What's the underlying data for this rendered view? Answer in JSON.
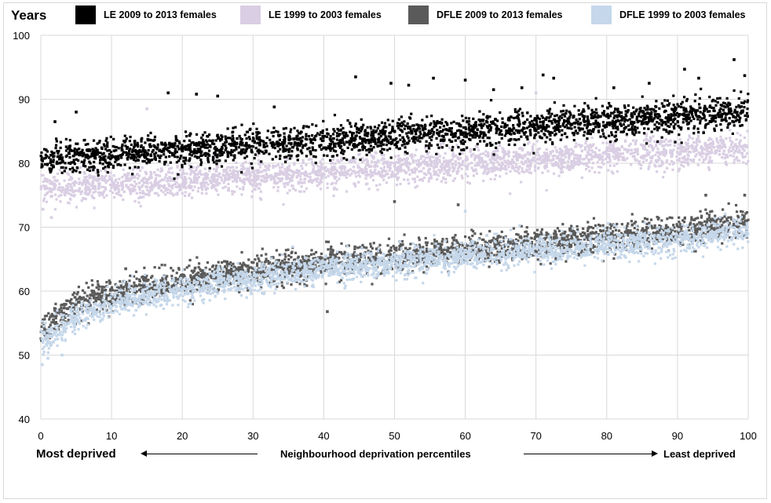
{
  "chart_data": {
    "type": "scatter",
    "title": "",
    "ylabel": "Years",
    "xlabel": "Neighbourhood deprivation percentiles",
    "xlim": [
      0,
      100
    ],
    "ylim": [
      40,
      100
    ],
    "x_ticks": [
      0,
      10,
      20,
      30,
      40,
      50,
      60,
      70,
      80,
      90,
      100
    ],
    "y_ticks": [
      40,
      50,
      60,
      70,
      80,
      90,
      100
    ],
    "grid": true,
    "legend_position": "top",
    "annotations": {
      "left": "Most deprived",
      "center": "Neighbourhood deprivation percentiles",
      "right": "Least deprived"
    },
    "series": [
      {
        "name": "LE 2009 to 2013 females",
        "color": "#000000",
        "trend": {
          "x": [
            0,
            100
          ],
          "y": [
            80.5,
            88.0
          ]
        },
        "spread": 2.3,
        "outliers": [
          [
            2,
            86.5
          ],
          [
            5,
            88.0
          ],
          [
            18,
            91.0
          ],
          [
            22,
            90.8
          ],
          [
            25,
            90.5
          ],
          [
            33,
            88.8
          ],
          [
            44.5,
            93.5
          ],
          [
            49.5,
            92.5
          ],
          [
            52,
            92.2
          ],
          [
            55.5,
            93.3
          ],
          [
            60,
            93.0
          ],
          [
            64,
            91.5
          ],
          [
            68,
            91.8
          ],
          [
            71,
            93.8
          ],
          [
            72.5,
            93.3
          ],
          [
            81,
            91.8
          ],
          [
            86,
            92.5
          ],
          [
            91,
            94.7
          ],
          [
            93,
            93.3
          ],
          [
            98,
            96.2
          ],
          [
            99.5,
            93.7
          ]
        ]
      },
      {
        "name": "LE 1999 to 2003 females",
        "color": "#d9cee3",
        "trend": {
          "x": [
            0,
            100
          ],
          "y": [
            76.0,
            82.5
          ]
        },
        "spread": 2.2,
        "outliers": [
          [
            0.3,
            72.8
          ],
          [
            1.5,
            71.5
          ],
          [
            15,
            88.5
          ],
          [
            70,
            91.0
          ]
        ]
      },
      {
        "name": "DFLE 2009 to 2013 females",
        "color": "#5a5a5a",
        "trend": {
          "x": [
            0,
            5,
            10,
            20,
            30,
            40,
            50,
            60,
            70,
            80,
            90,
            100
          ],
          "y": [
            54.0,
            58.0,
            59.6,
            61.5,
            63.2,
            64.5,
            65.5,
            66.5,
            67.4,
            68.3,
            69.2,
            71.0
          ]
        },
        "spread": 2.1,
        "outliers": [
          [
            40.5,
            56.8
          ],
          [
            50,
            74.0
          ],
          [
            59,
            73.5
          ],
          [
            94,
            75.0
          ],
          [
            99.5,
            75.0
          ],
          [
            12,
            63.5
          ]
        ]
      },
      {
        "name": "DFLE 1999 to 2003 females",
        "color": "#c5d7ea",
        "trend": {
          "x": [
            0,
            5,
            10,
            20,
            30,
            40,
            50,
            60,
            70,
            80,
            90,
            100
          ],
          "y": [
            52.0,
            56.0,
            58.0,
            60.3,
            62.0,
            63.4,
            64.5,
            65.5,
            66.3,
            67.1,
            68.0,
            69.5
          ]
        },
        "spread": 2.0,
        "outliers": [
          [
            0.2,
            48.5
          ],
          [
            1,
            49.5
          ],
          [
            3,
            50.0
          ],
          [
            60,
            72.5
          ]
        ]
      }
    ]
  }
}
